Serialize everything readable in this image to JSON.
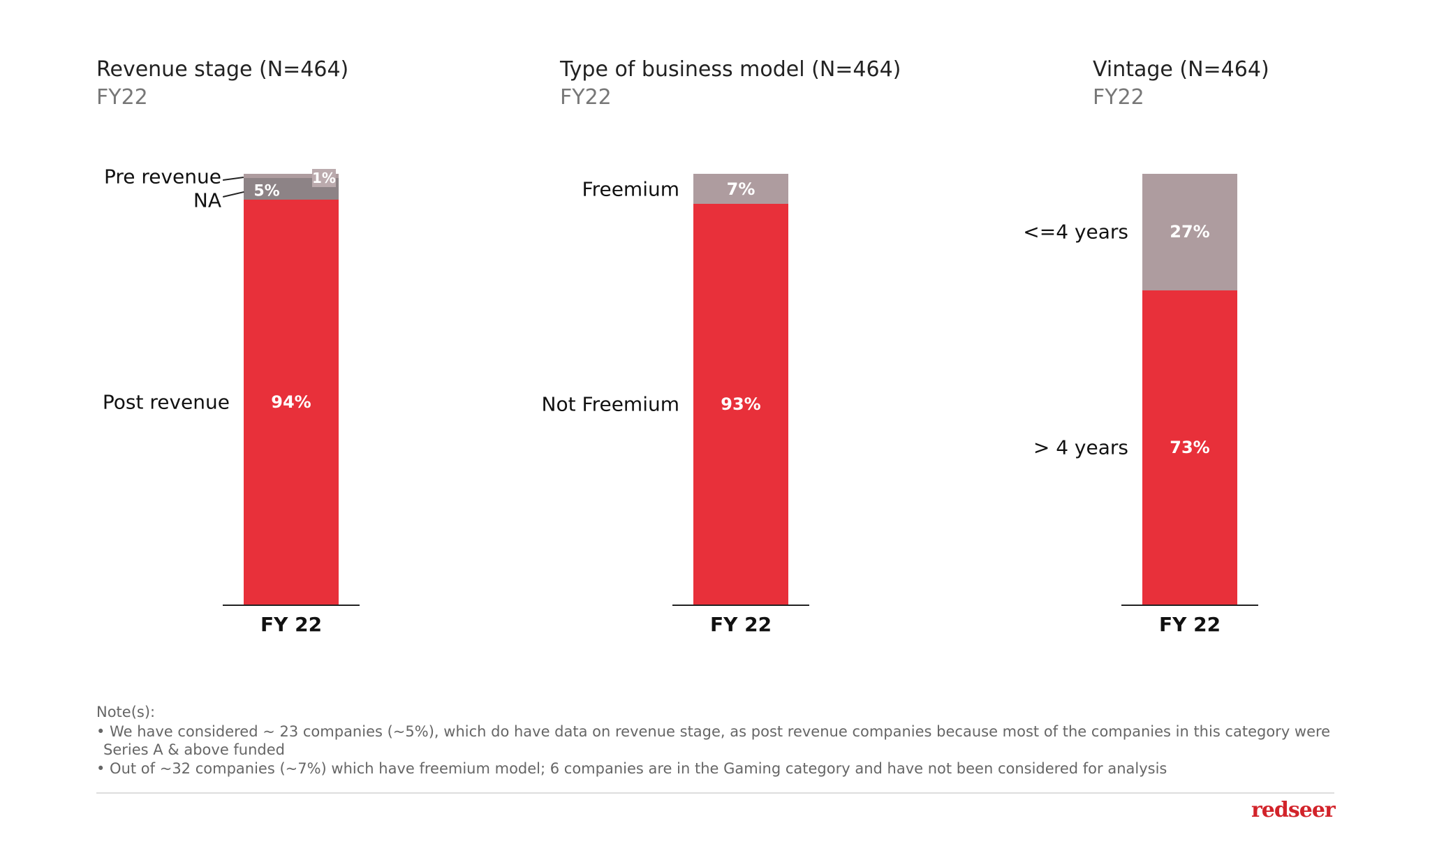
{
  "chart_data": [
    {
      "type": "bar",
      "stacked": true,
      "title": "Revenue stage (N=464)",
      "subtitle": "FY22",
      "categories": [
        "FY 22"
      ],
      "series": [
        {
          "name": "Post revenue",
          "values": [
            94
          ],
          "label": "94%"
        },
        {
          "name": "NA",
          "values": [
            5
          ],
          "label": "5%"
        },
        {
          "name": "Pre revenue",
          "values": [
            1
          ],
          "label": "1%"
        }
      ]
    },
    {
      "type": "bar",
      "stacked": true,
      "title": "Type of business model (N=464)",
      "subtitle": "FY22",
      "categories": [
        "FY 22"
      ],
      "series": [
        {
          "name": "Not Freemium",
          "values": [
            93
          ],
          "label": "93%"
        },
        {
          "name": "Freemium",
          "values": [
            7
          ],
          "label": "7%"
        }
      ]
    },
    {
      "type": "bar",
      "stacked": true,
      "title": "Vintage (N=464)",
      "subtitle": "FY22",
      "categories": [
        "FY 22"
      ],
      "series": [
        {
          "name": "> 4 years",
          "values": [
            73
          ],
          "label": "73%"
        },
        {
          "name": "<=4 years",
          "values": [
            27
          ],
          "label": "27%"
        }
      ]
    }
  ],
  "colors": {
    "red": "#e8303a",
    "gray_dark": "#8d8386",
    "gray": "#ae9c9f",
    "gray_light": "#bbaaad"
  },
  "notes": {
    "heading": "Note(s):",
    "lines": [
      "• We have considered ~ 23 companies (~5%), which do have data on revenue stage, as post revenue companies because most of the companies in this category were",
      "  Series A & above funded",
      "• Out of ~32 companies (~7%) which have freemium model; 6 companies are in the Gaming category and have not been considered for analysis"
    ]
  },
  "logo": "redseer"
}
